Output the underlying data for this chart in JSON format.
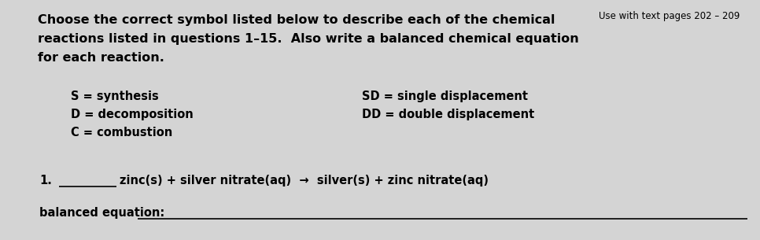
{
  "bg_color": "#d4d4d4",
  "page_ref": "Use with text pages 202 – 209",
  "title_line1": "Choose the correct symbol listed below to describe each of the chemical",
  "title_line2": "reactions listed in questions 1–15.  Also write a balanced chemical equation",
  "title_line3": "for each reaction.",
  "symbol_left": [
    "S = synthesis",
    "D = decomposition",
    "C = combustion"
  ],
  "symbol_right": [
    "SD = single displacement",
    "DD = double displacement"
  ],
  "q_number": "1.",
  "q_equation": "zinc(s) + silver nitrate(aq)  →  silver(s) + zinc nitrate(aq)",
  "balanced_label": "balanced equation:",
  "title_fontsize": 11.5,
  "sym_fontsize": 10.5,
  "q_fontsize": 10.5,
  "pageref_fontsize": 8.5
}
